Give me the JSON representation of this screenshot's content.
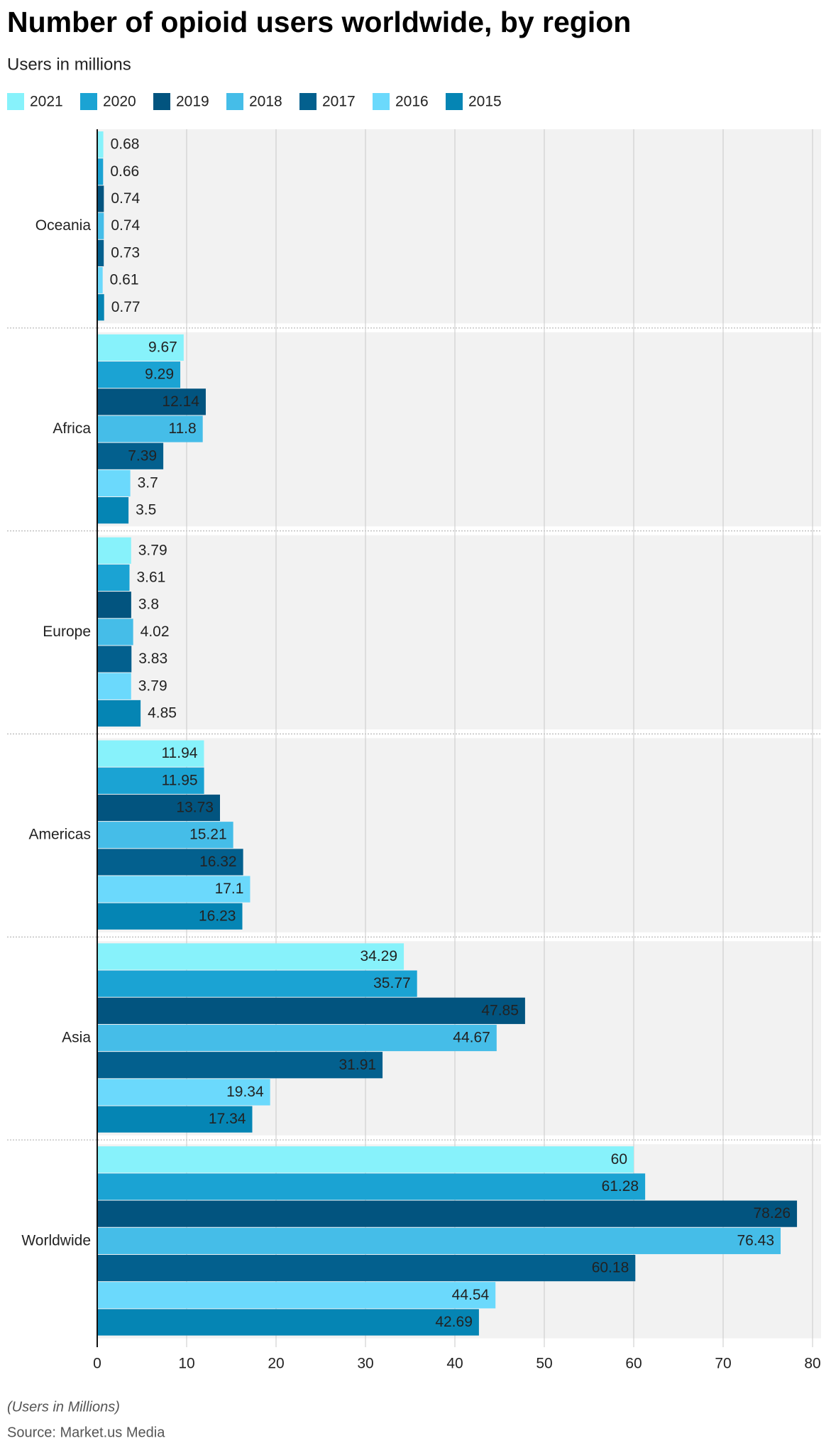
{
  "chart_data": {
    "type": "bar",
    "orientation": "horizontal",
    "title": "Number of opioid users worldwide, by region",
    "subtitle": "Users in millions",
    "note": "(Users in Millions)",
    "source": "Source: Market.us Media",
    "categories": [
      "Oceania",
      "Africa",
      "Europe",
      "Americas",
      "Asia",
      "Worldwide"
    ],
    "series": [
      {
        "name": "2021",
        "color": "#87f2fb",
        "values": [
          0.68,
          9.67,
          3.79,
          11.94,
          34.29,
          60
        ]
      },
      {
        "name": "2020",
        "color": "#1ba3d3",
        "values": [
          0.66,
          9.29,
          3.61,
          11.95,
          35.77,
          61.28
        ]
      },
      {
        "name": "2019",
        "color": "#02547f",
        "values": [
          0.74,
          12.14,
          3.8,
          13.73,
          47.85,
          78.26
        ]
      },
      {
        "name": "2018",
        "color": "#45bde8",
        "values": [
          0.74,
          11.8,
          4.02,
          15.21,
          44.67,
          76.43
        ]
      },
      {
        "name": "2017",
        "color": "#03608e",
        "values": [
          0.73,
          7.39,
          3.83,
          16.32,
          31.91,
          60.18
        ]
      },
      {
        "name": "2016",
        "color": "#6bd9fc",
        "values": [
          0.61,
          3.7,
          3.79,
          17.1,
          19.34,
          44.54
        ]
      },
      {
        "name": "2015",
        "color": "#0585b4",
        "values": [
          0.77,
          3.5,
          4.85,
          16.23,
          17.34,
          42.69
        ]
      }
    ],
    "xlim": [
      0,
      80
    ],
    "xticks": [
      0,
      10,
      20,
      30,
      40,
      50,
      60,
      70,
      80
    ],
    "grid": true
  }
}
